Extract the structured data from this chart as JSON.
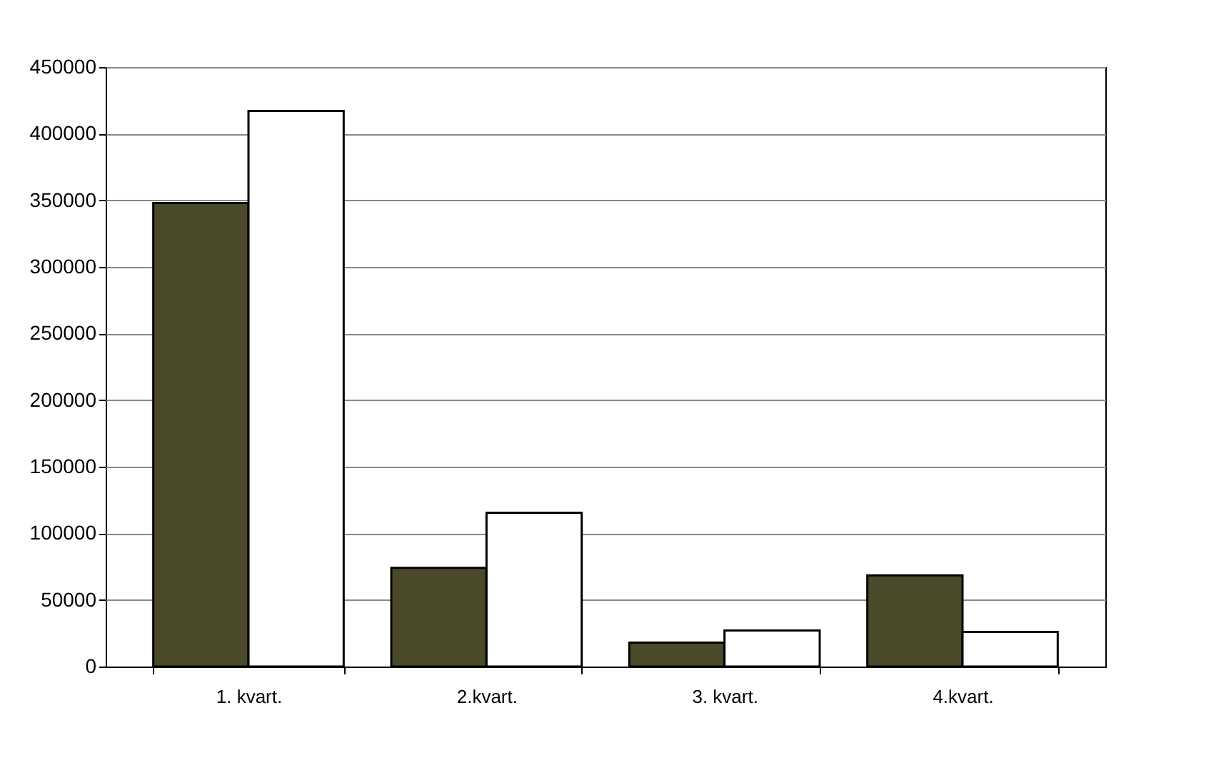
{
  "chart_data": {
    "type": "bar",
    "categories": [
      "1. kvart.",
      "2.kvart.",
      "3. kvart.",
      "4.kvart."
    ],
    "series": [
      {
        "color": "#4a4a2a",
        "values": [
          348000,
          74000,
          18000,
          68500
        ]
      },
      {
        "color": "#ffffff",
        "values": [
          417000,
          115500,
          27000,
          26000
        ]
      }
    ],
    "ylim": [
      0,
      450000
    ],
    "yticks": [
      0,
      50000,
      100000,
      150000,
      200000,
      250000,
      300000,
      350000,
      400000,
      450000
    ],
    "grid": "y",
    "legend": false
  }
}
